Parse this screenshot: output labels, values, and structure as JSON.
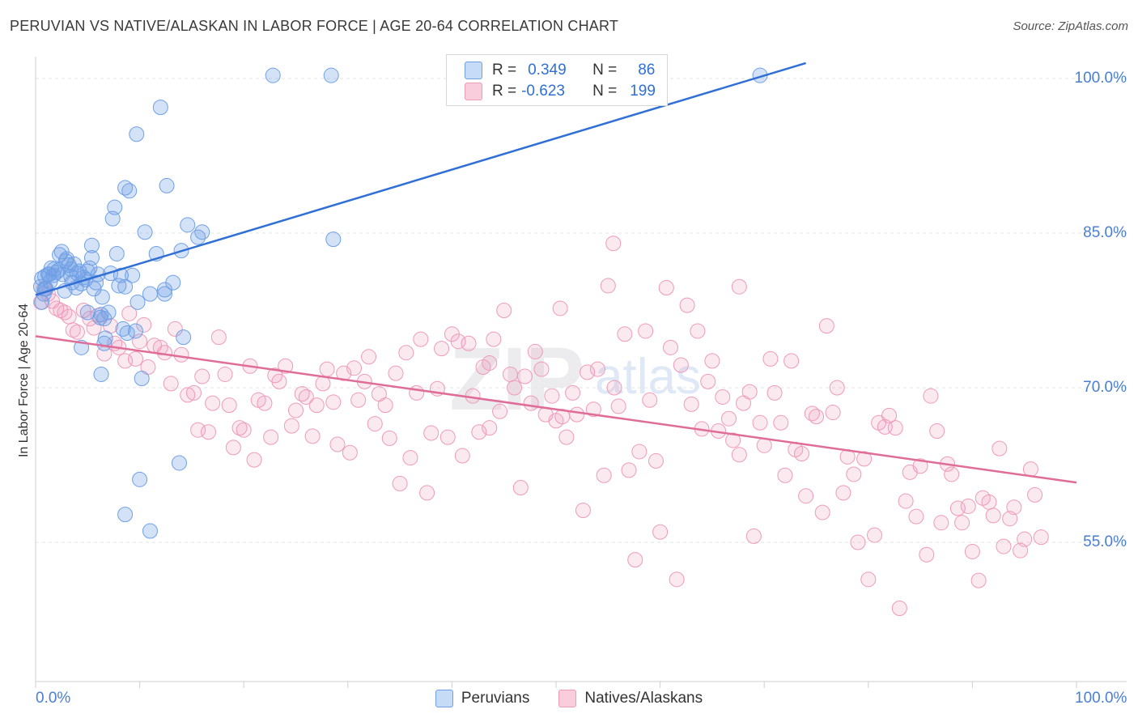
{
  "chart_data": {
    "type": "scatter",
    "title": "PERUVIAN VS NATIVE/ALASKAN IN LABOR FORCE | AGE 20-64 CORRELATION CHART",
    "source": "Source: ZipAtlas.com",
    "xlabel": "",
    "ylabel": "In Labor Force | Age 20-64",
    "xlim": [
      0,
      100
    ],
    "ylim": [
      40,
      102
    ],
    "x_tick_labels": [
      "0.0%",
      "100.0%"
    ],
    "y_ticks": [
      55,
      70,
      85,
      100
    ],
    "y_tick_labels": [
      "55.0%",
      "70.0%",
      "85.0%",
      "100.0%"
    ],
    "grid": true,
    "legend_position": "bottom",
    "watermark": "ZIPatlas",
    "colors": {
      "peruvians": "#6fa0e6",
      "peruvians_line": "#2f6fd6",
      "natives": "#ef9ab9",
      "natives_line": "#e06c98"
    },
    "stats": [
      {
        "series": "Peruvians",
        "r_label": "R =",
        "r": "0.349",
        "n_label": "N =",
        "n": "86"
      },
      {
        "series": "Natives/Alaskans",
        "r_label": "R =",
        "r": "-0.623",
        "n_label": "N =",
        "n": "199"
      }
    ],
    "series": [
      {
        "name": "Peruvians",
        "trend": {
          "x": [
            0,
            74
          ],
          "y": [
            79.0,
            101.5
          ]
        },
        "points": [
          [
            0.5,
            79.8
          ],
          [
            0.6,
            80.6
          ],
          [
            0.6,
            78.3
          ],
          [
            0.8,
            79.1
          ],
          [
            0.9,
            80.8
          ],
          [
            1.0,
            79.6
          ],
          [
            1.2,
            81.0
          ],
          [
            1.4,
            80.3
          ],
          [
            1.5,
            81.6
          ],
          [
            1.7,
            80.9
          ],
          [
            1.8,
            81.5
          ],
          [
            2.0,
            81.2
          ],
          [
            2.2,
            81.4
          ],
          [
            2.3,
            82.9
          ],
          [
            2.5,
            83.2
          ],
          [
            2.6,
            81.0
          ],
          [
            2.8,
            79.4
          ],
          [
            3.0,
            82.5
          ],
          [
            3.2,
            81.9
          ],
          [
            3.4,
            81.5
          ],
          [
            3.5,
            80.2
          ],
          [
            3.7,
            82.0
          ],
          [
            3.9,
            79.7
          ],
          [
            4.0,
            81.1
          ],
          [
            4.2,
            81.3
          ],
          [
            4.4,
            80.1
          ],
          [
            4.6,
            80.7
          ],
          [
            4.8,
            80.5
          ],
          [
            5.0,
            81.3
          ],
          [
            5.2,
            81.6
          ],
          [
            5.4,
            83.8
          ],
          [
            5.4,
            82.6
          ],
          [
            5.6,
            79.6
          ],
          [
            5.8,
            80.2
          ],
          [
            6.0,
            81.0
          ],
          [
            6.2,
            76.8
          ],
          [
            6.4,
            78.8
          ],
          [
            6.6,
            76.7
          ],
          [
            6.7,
            74.8
          ],
          [
            6.6,
            74.3
          ],
          [
            7.0,
            77.3
          ],
          [
            7.2,
            81.1
          ],
          [
            7.4,
            86.4
          ],
          [
            7.6,
            87.5
          ],
          [
            7.8,
            83.0
          ],
          [
            8.0,
            79.9
          ],
          [
            8.2,
            80.9
          ],
          [
            8.4,
            75.7
          ],
          [
            8.6,
            79.8
          ],
          [
            8.6,
            89.4
          ],
          [
            8.8,
            75.3
          ],
          [
            9.0,
            89.1
          ],
          [
            9.3,
            80.9
          ],
          [
            9.6,
            75.5
          ],
          [
            9.7,
            94.6
          ],
          [
            9.8,
            78.3
          ],
          [
            10.0,
            61.1
          ],
          [
            10.2,
            70.9
          ],
          [
            10.5,
            85.1
          ],
          [
            11.0,
            79.1
          ],
          [
            11.6,
            83.0
          ],
          [
            12.0,
            97.2
          ],
          [
            12.4,
            79.5
          ],
          [
            12.4,
            79.1
          ],
          [
            12.6,
            89.6
          ],
          [
            13.2,
            80.2
          ],
          [
            13.8,
            62.7
          ],
          [
            14.0,
            83.3
          ],
          [
            14.2,
            74.9
          ],
          [
            14.6,
            85.8
          ],
          [
            15.6,
            84.6
          ],
          [
            16.0,
            85.1
          ],
          [
            22.8,
            100.3
          ],
          [
            28.4,
            100.3
          ],
          [
            28.6,
            84.4
          ],
          [
            69.6,
            100.3
          ],
          [
            4.4,
            73.9
          ],
          [
            6.3,
            77.1
          ],
          [
            5.0,
            77.3
          ],
          [
            3.4,
            80.8
          ],
          [
            2.9,
            82.3
          ],
          [
            1.3,
            81.0
          ],
          [
            0.9,
            79.6
          ],
          [
            6.3,
            71.3
          ],
          [
            8.6,
            57.7
          ],
          [
            11.0,
            56.1
          ]
        ]
      },
      {
        "name": "Natives/Alaskans",
        "trend": {
          "x": [
            0,
            100
          ],
          "y": [
            75.0,
            60.8
          ]
        },
        "points": [
          [
            0.5,
            78.3
          ],
          [
            0.8,
            79.6
          ],
          [
            1.2,
            79.1
          ],
          [
            1.6,
            78.4
          ],
          [
            2.0,
            77.7
          ],
          [
            2.4,
            77.5
          ],
          [
            2.8,
            77.3
          ],
          [
            3.2,
            76.9
          ],
          [
            3.6,
            75.6
          ],
          [
            4.0,
            75.4
          ],
          [
            4.6,
            77.5
          ],
          [
            5.2,
            76.7
          ],
          [
            5.6,
            75.8
          ],
          [
            6.0,
            77.0
          ],
          [
            6.6,
            73.3
          ],
          [
            7.2,
            76.0
          ],
          [
            7.6,
            74.3
          ],
          [
            8.0,
            73.9
          ],
          [
            8.6,
            72.6
          ],
          [
            9.0,
            77.2
          ],
          [
            9.6,
            72.8
          ],
          [
            10.0,
            74.5
          ],
          [
            10.4,
            76.1
          ],
          [
            10.8,
            72.0
          ],
          [
            11.4,
            74.1
          ],
          [
            12.0,
            73.9
          ],
          [
            12.4,
            73.4
          ],
          [
            13.0,
            70.4
          ],
          [
            13.4,
            75.7
          ],
          [
            14.0,
            73.2
          ],
          [
            14.6,
            69.3
          ],
          [
            15.2,
            69.5
          ],
          [
            15.6,
            65.9
          ],
          [
            16.0,
            71.1
          ],
          [
            16.6,
            65.7
          ],
          [
            17.0,
            68.5
          ],
          [
            17.6,
            74.9
          ],
          [
            18.2,
            71.3
          ],
          [
            18.6,
            68.3
          ],
          [
            19.0,
            64.2
          ],
          [
            19.6,
            66.1
          ],
          [
            20.0,
            65.9
          ],
          [
            20.6,
            72.1
          ],
          [
            21.0,
            63.0
          ],
          [
            21.4,
            68.8
          ],
          [
            22.0,
            68.5
          ],
          [
            22.6,
            65.2
          ],
          [
            23.0,
            71.2
          ],
          [
            23.4,
            70.6
          ],
          [
            24.0,
            72.1
          ],
          [
            24.6,
            66.3
          ],
          [
            25.0,
            67.8
          ],
          [
            25.6,
            69.4
          ],
          [
            26.0,
            69.1
          ],
          [
            26.6,
            65.3
          ],
          [
            27.0,
            68.3
          ],
          [
            27.6,
            70.4
          ],
          [
            28.0,
            71.8
          ],
          [
            28.6,
            68.6
          ],
          [
            29.0,
            64.5
          ],
          [
            29.6,
            71.4
          ],
          [
            30.2,
            63.7
          ],
          [
            30.6,
            71.9
          ],
          [
            31.0,
            68.8
          ],
          [
            31.6,
            70.6
          ],
          [
            32.0,
            73.0
          ],
          [
            32.6,
            66.5
          ],
          [
            33.0,
            69.4
          ],
          [
            33.6,
            68.3
          ],
          [
            34.0,
            65.1
          ],
          [
            34.6,
            71.4
          ],
          [
            35.0,
            60.7
          ],
          [
            35.6,
            73.4
          ],
          [
            36.0,
            63.2
          ],
          [
            36.6,
            69.5
          ],
          [
            37.0,
            74.7
          ],
          [
            37.6,
            59.8
          ],
          [
            38.0,
            65.6
          ],
          [
            38.6,
            69.9
          ],
          [
            39.0,
            73.8
          ],
          [
            39.6,
            65.2
          ],
          [
            40.0,
            75.2
          ],
          [
            40.6,
            74.5
          ],
          [
            41.0,
            63.4
          ],
          [
            41.6,
            74.3
          ],
          [
            42.0,
            69.2
          ],
          [
            42.6,
            65.7
          ],
          [
            43.0,
            72.0
          ],
          [
            43.6,
            66.1
          ],
          [
            44.0,
            74.7
          ],
          [
            44.6,
            67.7
          ],
          [
            45.0,
            77.5
          ],
          [
            45.6,
            71.3
          ],
          [
            46.0,
            70.0
          ],
          [
            46.6,
            60.3
          ],
          [
            47.0,
            71.1
          ],
          [
            47.6,
            68.5
          ],
          [
            48.0,
            73.5
          ],
          [
            48.6,
            71.8
          ],
          [
            49.0,
            67.4
          ],
          [
            49.6,
            69.2
          ],
          [
            50.0,
            66.8
          ],
          [
            50.6,
            67.2
          ],
          [
            51.0,
            65.2
          ],
          [
            51.6,
            69.5
          ],
          [
            52.0,
            67.4
          ],
          [
            52.6,
            58.1
          ],
          [
            53.0,
            71.5
          ],
          [
            53.6,
            67.9
          ],
          [
            54.0,
            71.8
          ],
          [
            54.6,
            61.5
          ],
          [
            55.0,
            79.9
          ],
          [
            55.6,
            70.0
          ],
          [
            56.0,
            68.2
          ],
          [
            56.6,
            75.2
          ],
          [
            57.0,
            62.0
          ],
          [
            57.6,
            53.3
          ],
          [
            58.0,
            63.8
          ],
          [
            58.6,
            75.5
          ],
          [
            59.0,
            68.8
          ],
          [
            59.6,
            62.9
          ],
          [
            60.0,
            56.0
          ],
          [
            60.6,
            79.7
          ],
          [
            61.0,
            73.9
          ],
          [
            61.6,
            51.4
          ],
          [
            62.0,
            72.2
          ],
          [
            62.6,
            78.0
          ],
          [
            63.0,
            68.4
          ],
          [
            63.6,
            75.5
          ],
          [
            64.0,
            66.0
          ],
          [
            64.6,
            70.6
          ],
          [
            65.0,
            72.6
          ],
          [
            65.6,
            65.8
          ],
          [
            66.0,
            69.1
          ],
          [
            66.6,
            67.0
          ],
          [
            67.0,
            64.9
          ],
          [
            67.6,
            63.5
          ],
          [
            68.0,
            68.5
          ],
          [
            68.6,
            69.6
          ],
          [
            69.0,
            55.6
          ],
          [
            69.6,
            66.6
          ],
          [
            70.0,
            64.4
          ],
          [
            70.6,
            72.8
          ],
          [
            71.0,
            69.5
          ],
          [
            71.6,
            66.6
          ],
          [
            72.0,
            61.5
          ],
          [
            72.6,
            72.6
          ],
          [
            73.0,
            64.0
          ],
          [
            73.6,
            63.6
          ],
          [
            74.0,
            59.5
          ],
          [
            74.6,
            67.5
          ],
          [
            75.0,
            67.2
          ],
          [
            75.6,
            57.9
          ],
          [
            76.0,
            76.0
          ],
          [
            76.6,
            67.6
          ],
          [
            77.0,
            70.0
          ],
          [
            77.6,
            59.8
          ],
          [
            78.0,
            63.3
          ],
          [
            78.6,
            61.6
          ],
          [
            79.0,
            55.0
          ],
          [
            79.6,
            63.1
          ],
          [
            80.0,
            51.4
          ],
          [
            80.6,
            55.7
          ],
          [
            81.0,
            66.6
          ],
          [
            81.6,
            66.2
          ],
          [
            82.0,
            67.3
          ],
          [
            82.6,
            66.1
          ],
          [
            83.0,
            48.6
          ],
          [
            83.6,
            59.0
          ],
          [
            84.0,
            61.8
          ],
          [
            84.6,
            57.5
          ],
          [
            85.0,
            62.4
          ],
          [
            85.6,
            53.8
          ],
          [
            86.0,
            69.2
          ],
          [
            86.6,
            65.8
          ],
          [
            87.0,
            56.9
          ],
          [
            87.6,
            62.6
          ],
          [
            88.0,
            61.6
          ],
          [
            88.6,
            58.3
          ],
          [
            89.0,
            56.9
          ],
          [
            89.6,
            58.5
          ],
          [
            90.0,
            54.1
          ],
          [
            90.6,
            51.3
          ],
          [
            91.0,
            59.3
          ],
          [
            91.6,
            58.9
          ],
          [
            92.0,
            57.6
          ],
          [
            92.6,
            64.1
          ],
          [
            93.0,
            54.6
          ],
          [
            93.6,
            57.3
          ],
          [
            94.0,
            58.4
          ],
          [
            94.6,
            54.2
          ],
          [
            95.0,
            55.3
          ],
          [
            95.6,
            62.1
          ],
          [
            96.0,
            59.6
          ],
          [
            96.6,
            55.5
          ],
          [
            55.5,
            84.0
          ],
          [
            67.6,
            79.8
          ],
          [
            50.4,
            77.7
          ],
          [
            43.6,
            72.4
          ]
        ]
      }
    ]
  }
}
